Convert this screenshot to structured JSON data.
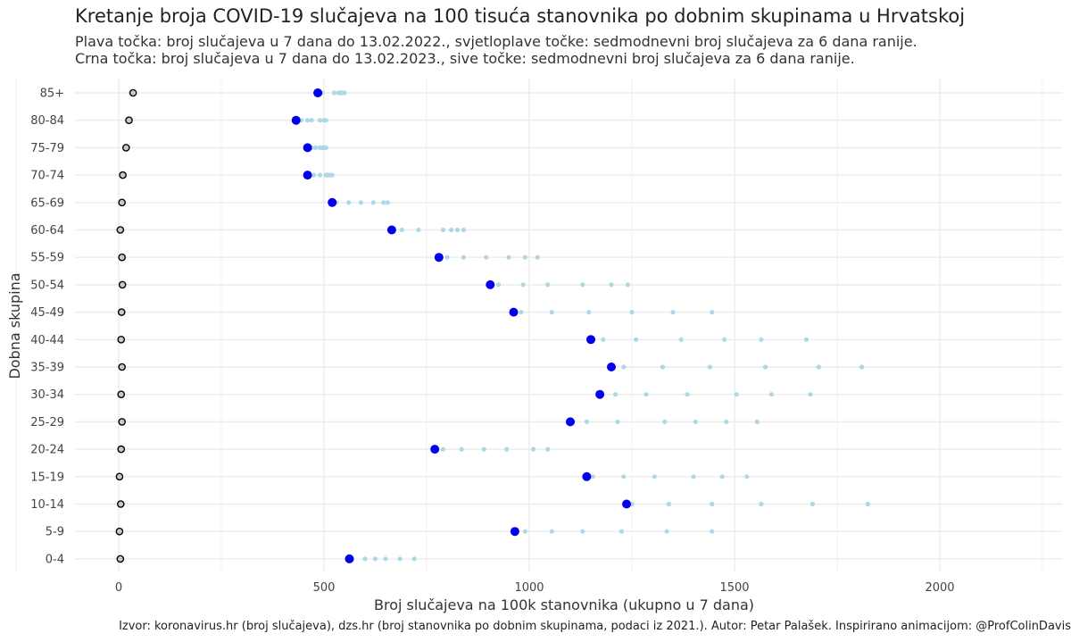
{
  "chart_data": {
    "type": "scatter",
    "title": "Kretanje broja COVID-19 slučajeva na 100 tisuća stanovnika po dobnim skupinama u Hrvatskoj",
    "subtitle_1": "Plava točka: broj slučajeva u 7 dana do 13.02.2022., svjetloplave točke: sedmodnevni broj slučajeva za 6 dana ranije.",
    "subtitle_2": "Crna točka: broj slučajeva u 7 dana do 13.02.2023., sive točke: sedmodnevni broj slučajeva za 6 dana ranije.",
    "xlabel": "Broj slučajeva na 100k stanovnika (ukupno u 7 dana)",
    "ylabel": "Dobna skupina",
    "caption": "Izvor: koronavirus.hr (broj slučajeva), dzs.hr (broj stanovnika po dobnim skupinama, podaci iz 2021.). Autor: Petar Palašek. Inspirirano animacijom: @ProfColinDavis",
    "xlim": [
      -110,
      2270
    ],
    "xticks": [
      0,
      500,
      1000,
      1500,
      2000
    ],
    "grid": true,
    "categories": [
      "0-4",
      "5-9",
      "10-14",
      "15-19",
      "20-24",
      "25-29",
      "30-34",
      "35-39",
      "40-44",
      "45-49",
      "50-54",
      "55-59",
      "60-64",
      "65-69",
      "70-74",
      "75-79",
      "80-84",
      "85+"
    ],
    "colors": {
      "blue_main": "#0000ee",
      "blue_light": "#add8e6",
      "black_main": "#000000",
      "grey_light": "#c8c8c8",
      "grid": "#ebebeb"
    },
    "series": [
      {
        "name": "2022 (13.02.2022.)",
        "values": [
          562,
          965,
          1237,
          1140,
          770,
          1100,
          1172,
          1200,
          1150,
          962,
          905,
          780,
          665,
          520,
          460,
          460,
          432,
          485
        ]
      },
      {
        "name": "2022 - 6 dana ranije",
        "values": [
          [
            600,
            625,
            650,
            685,
            720
          ],
          [
            990,
            1055,
            1130,
            1225,
            1335,
            1445
          ],
          [
            1250,
            1340,
            1445,
            1565,
            1690,
            1825
          ],
          [
            1155,
            1230,
            1305,
            1400,
            1470,
            1530
          ],
          [
            790,
            835,
            890,
            945,
            1010,
            1045
          ],
          [
            1140,
            1215,
            1330,
            1405,
            1480,
            1555
          ],
          [
            1210,
            1285,
            1385,
            1505,
            1590,
            1685
          ],
          [
            1230,
            1325,
            1440,
            1575,
            1705,
            1810
          ],
          [
            1180,
            1260,
            1370,
            1475,
            1565,
            1675
          ],
          [
            980,
            1055,
            1145,
            1250,
            1350,
            1445
          ],
          [
            925,
            985,
            1045,
            1130,
            1200,
            1240
          ],
          [
            800,
            840,
            895,
            950,
            990,
            1020
          ],
          [
            690,
            730,
            790,
            810,
            825,
            840
          ],
          [
            530,
            560,
            590,
            620,
            645,
            655
          ],
          [
            475,
            490,
            505,
            510,
            515,
            520
          ],
          [
            470,
            480,
            490,
            495,
            500,
            505
          ],
          [
            445,
            460,
            470,
            490,
            500,
            505
          ],
          [
            495,
            525,
            535,
            540,
            545,
            550
          ]
        ]
      },
      {
        "name": "2023 (13.02.2023.)",
        "values": [
          4,
          2,
          5,
          2,
          6,
          8,
          6,
          8,
          6,
          7,
          9,
          8,
          4,
          8,
          10,
          18,
          25,
          35
        ]
      },
      {
        "name": "2023 - 6 dana ranije",
        "values": [
          [
            3,
            4,
            5,
            6,
            7
          ],
          [
            1,
            2,
            3,
            4,
            5
          ],
          [
            3,
            4,
            5,
            6,
            7
          ],
          [
            0,
            1,
            2,
            3,
            4
          ],
          [
            4,
            5,
            6,
            7,
            8
          ],
          [
            6,
            7,
            8,
            9,
            10
          ],
          [
            4,
            5,
            6,
            7,
            8
          ],
          [
            6,
            7,
            8,
            9,
            10
          ],
          [
            4,
            5,
            6,
            7,
            8
          ],
          [
            5,
            6,
            7,
            8,
            9
          ],
          [
            7,
            8,
            9,
            10,
            11
          ],
          [
            6,
            7,
            8,
            9,
            10
          ],
          [
            2,
            3,
            4,
            5,
            6
          ],
          [
            6,
            7,
            8,
            9,
            10
          ],
          [
            8,
            9,
            10,
            11,
            12
          ],
          [
            15,
            16,
            17,
            18,
            19
          ],
          [
            22,
            23,
            24,
            25,
            26
          ],
          [
            31,
            32,
            33,
            34,
            35
          ]
        ]
      }
    ]
  }
}
